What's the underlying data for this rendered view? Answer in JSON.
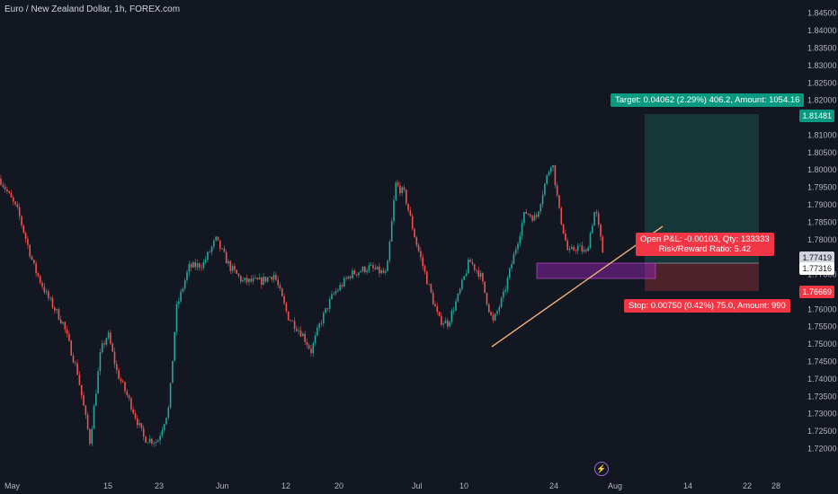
{
  "header": {
    "title": "Euro / New Zealand Dollar, 1h, FOREX.com"
  },
  "colors": {
    "background": "#131722",
    "up": "#26a69a",
    "down": "#ef5350",
    "text": "#b2b5be",
    "target_box": "#1b5e55",
    "stop_box": "#7f2b32",
    "zone": "#8e24aa"
  },
  "price_axis": {
    "labels": [
      "1.84500",
      "1.84000",
      "1.83500",
      "1.83000",
      "1.82500",
      "1.82000",
      "1.81000",
      "1.80500",
      "1.80000",
      "1.79500",
      "1.79000",
      "1.78500",
      "1.78000",
      "1.77000",
      "1.76000",
      "1.75500",
      "1.75000",
      "1.74500",
      "1.74000",
      "1.73500",
      "1.73000",
      "1.72500",
      "1.72000"
    ]
  },
  "time_axis": {
    "labels": [
      "May",
      "15",
      "23",
      "Jun",
      "12",
      "20",
      "Jul",
      "10",
      "24",
      "Aug",
      "14",
      "22",
      "28"
    ]
  },
  "badges": {
    "target_price": "1.81481",
    "current_price_1": "1.77419",
    "current_price_2": "1.77316",
    "stop_price": "1.76669"
  },
  "position": {
    "target_label": "Target: 0.04062 (2.29%) 406.2, Amount: 1054.16",
    "open_pnl": "Open P&L: -0.00103, Qty: 133333",
    "risk_reward": "Risk/Reward Ratio: 5.42",
    "stop_label": "Stop: 0.00750 (0.42%) 75.0, Amount: 990"
  },
  "icons": {
    "replay": "lightning-icon"
  },
  "chart_data": {
    "type": "candlestick",
    "title": "Euro / New Zealand Dollar, 1h, FOREX.com",
    "symbol": "EURNZD",
    "ylim": [
      1.7165,
      1.8475
    ],
    "path": [
      [
        0,
        1.7975
      ],
      [
        20,
        1.788
      ],
      [
        38,
        1.772
      ],
      [
        52,
        1.764
      ],
      [
        70,
        1.756
      ],
      [
        86,
        1.742
      ],
      [
        100,
        1.722
      ],
      [
        112,
        1.748
      ],
      [
        120,
        1.753
      ],
      [
        130,
        1.742
      ],
      [
        145,
        1.733
      ],
      [
        160,
        1.723
      ],
      [
        175,
        1.722
      ],
      [
        188,
        1.732
      ],
      [
        196,
        1.76
      ],
      [
        210,
        1.772
      ],
      [
        226,
        1.773
      ],
      [
        240,
        1.78
      ],
      [
        256,
        1.772
      ],
      [
        270,
        1.768
      ],
      [
        290,
        1.768
      ],
      [
        305,
        1.77
      ],
      [
        320,
        1.758
      ],
      [
        336,
        1.753
      ],
      [
        346,
        1.748
      ],
      [
        356,
        1.756
      ],
      [
        370,
        1.764
      ],
      [
        390,
        1.77
      ],
      [
        410,
        1.772
      ],
      [
        430,
        1.77
      ],
      [
        440,
        1.796
      ],
      [
        450,
        1.793
      ],
      [
        462,
        1.78
      ],
      [
        474,
        1.769
      ],
      [
        488,
        1.757
      ],
      [
        498,
        1.756
      ],
      [
        510,
        1.764
      ],
      [
        522,
        1.774
      ],
      [
        534,
        1.77
      ],
      [
        548,
        1.756
      ],
      [
        560,
        1.764
      ],
      [
        572,
        1.776
      ],
      [
        584,
        1.788
      ],
      [
        596,
        1.786
      ],
      [
        606,
        1.796
      ],
      [
        614,
        1.803
      ],
      [
        622,
        1.788
      ],
      [
        632,
        1.776
      ],
      [
        642,
        1.778
      ],
      [
        652,
        1.776
      ],
      [
        662,
        1.789
      ],
      [
        672,
        1.774
      ]
    ]
  }
}
